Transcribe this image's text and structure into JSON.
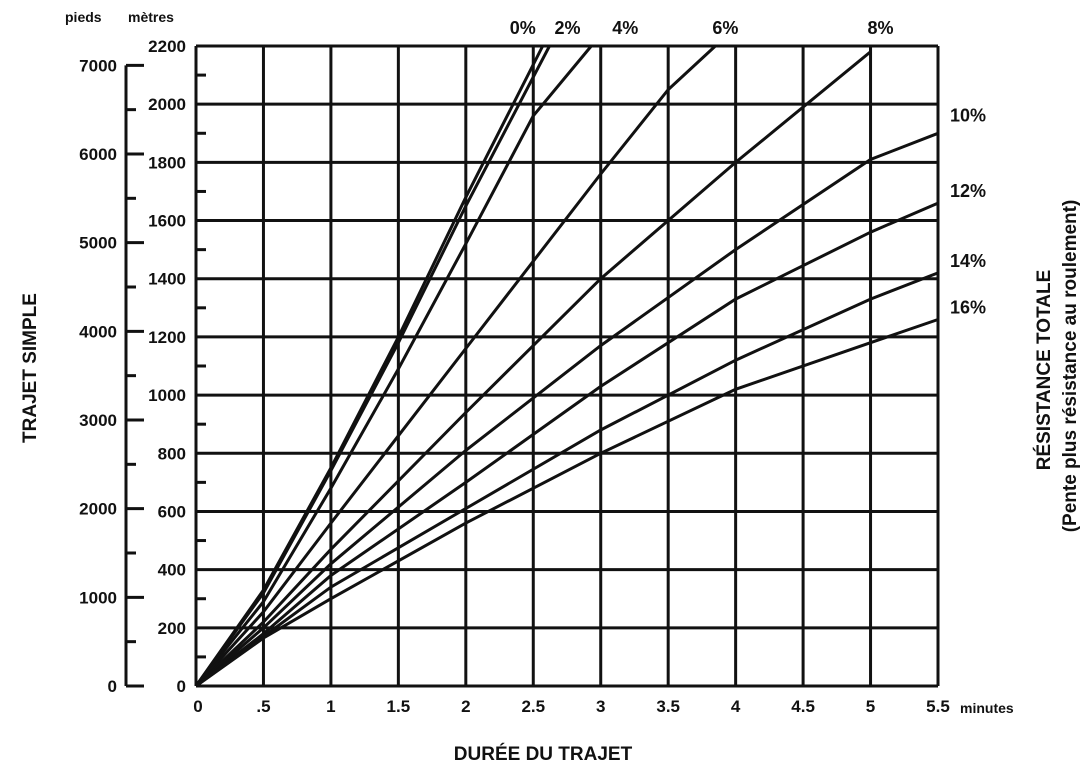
{
  "chart_data": {
    "type": "line",
    "title": "",
    "xlabel": "DURÉE DU TRAJET",
    "x_unit": "minutes",
    "ylabel": "TRAJET SIMPLE",
    "y_unit_primary": "pieds",
    "y_unit_secondary": "mètres",
    "right_title_line1": "RÉSISTANCE TOTALE",
    "right_title_line2": "(Pente plus résistance au roulement)",
    "xlim": [
      0,
      5.5
    ],
    "ylim": [
      0,
      2200
    ],
    "x_ticks": [
      {
        "value": 0,
        "label": "0"
      },
      {
        "value": 0.5,
        "label": ".5"
      },
      {
        "value": 1,
        "label": "1"
      },
      {
        "value": 1.5,
        "label": "1.5"
      },
      {
        "value": 2,
        "label": "2"
      },
      {
        "value": 2.5,
        "label": "2.5"
      },
      {
        "value": 3,
        "label": "3"
      },
      {
        "value": 3.5,
        "label": "3.5"
      },
      {
        "value": 4,
        "label": "4"
      },
      {
        "value": 4.5,
        "label": "4.5"
      },
      {
        "value": 5,
        "label": "5"
      },
      {
        "value": 5.5,
        "label": "5.5"
      }
    ],
    "y_ticks_metres": [
      {
        "value": 0,
        "label": "0"
      },
      {
        "value": 200,
        "label": "200"
      },
      {
        "value": 400,
        "label": "400"
      },
      {
        "value": 600,
        "label": "600"
      },
      {
        "value": 800,
        "label": "800"
      },
      {
        "value": 1000,
        "label": "1000"
      },
      {
        "value": 1200,
        "label": "1200"
      },
      {
        "value": 1400,
        "label": "1400"
      },
      {
        "value": 1600,
        "label": "1600"
      },
      {
        "value": 1800,
        "label": "1800"
      },
      {
        "value": 2000,
        "label": "2000"
      },
      {
        "value": 2200,
        "label": "2200"
      }
    ],
    "y_ticks_feet": [
      {
        "value": 0,
        "label": "0"
      },
      {
        "value": 1000,
        "label": "1000"
      },
      {
        "value": 2000,
        "label": "2000"
      },
      {
        "value": 3000,
        "label": "3000"
      },
      {
        "value": 4000,
        "label": "4000"
      },
      {
        "value": 5000,
        "label": "5000"
      },
      {
        "value": 6000,
        "label": "6000"
      },
      {
        "value": 7000,
        "label": "7000"
      }
    ],
    "grid": true,
    "series": [
      {
        "name": "0%",
        "x": [
          0,
          0.5,
          1,
          1.5,
          2,
          2.57
        ],
        "y": [
          0,
          330,
          750,
          1200,
          1680,
          2200
        ]
      },
      {
        "name": "2%",
        "x": [
          0,
          0.5,
          1,
          1.5,
          2,
          2.62
        ],
        "y": [
          0,
          320,
          740,
          1180,
          1650,
          2200
        ]
      },
      {
        "name": "4%",
        "x": [
          0,
          0.5,
          1,
          1.5,
          2,
          2.5,
          2.93
        ],
        "y": [
          0,
          290,
          680,
          1090,
          1520,
          1960,
          2200
        ]
      },
      {
        "name": "6%",
        "x": [
          0,
          0.5,
          1,
          2,
          3,
          3.5,
          3.85
        ],
        "y": [
          0,
          255,
          560,
          1160,
          1760,
          2050,
          2200
        ]
      },
      {
        "name": "8%",
        "x": [
          0,
          0.5,
          1,
          2,
          3,
          4,
          5,
          5.0
        ],
        "y": [
          0,
          220,
          470,
          940,
          1400,
          1800,
          2180,
          2200
        ]
      },
      {
        "name": "10%",
        "x": [
          0,
          0.5,
          1,
          2,
          3,
          4,
          5,
          5.5
        ],
        "y": [
          0,
          200,
          420,
          810,
          1170,
          1500,
          1810,
          1900
        ]
      },
      {
        "name": "12%",
        "x": [
          0,
          0.5,
          1,
          2,
          3,
          4,
          5,
          5.5
        ],
        "y": [
          0,
          180,
          380,
          700,
          1030,
          1330,
          1560,
          1660
        ]
      },
      {
        "name": "14%",
        "x": [
          0,
          0.5,
          1,
          2,
          3,
          4,
          5,
          5.5
        ],
        "y": [
          0,
          170,
          340,
          610,
          880,
          1120,
          1330,
          1420
        ]
      },
      {
        "name": "16%",
        "x": [
          0,
          0.5,
          1,
          2,
          3,
          4,
          5,
          5.5
        ],
        "y": [
          0,
          165,
          300,
          560,
          800,
          1020,
          1180,
          1260
        ]
      }
    ]
  }
}
